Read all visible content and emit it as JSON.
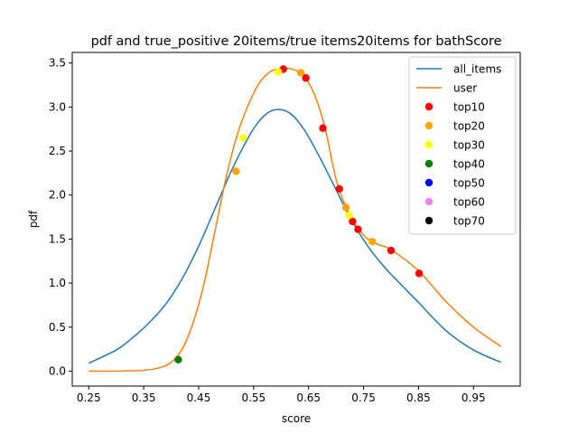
{
  "chart_data": {
    "type": "line",
    "title": "pdf and true_positive 20items/true items20items for bathScore",
    "xlabel": "score",
    "ylabel": "pdf",
    "xlim": [
      0.22,
      1.035
    ],
    "ylim": [
      -0.17,
      3.62
    ],
    "xticks": [
      "0.25",
      "0.35",
      "0.45",
      "0.55",
      "0.65",
      "0.75",
      "0.85",
      "0.95"
    ],
    "xtick_values": [
      0.25,
      0.35,
      0.45,
      0.55,
      0.65,
      0.75,
      0.85,
      0.95
    ],
    "yticks": [
      "0.0",
      "0.5",
      "1.0",
      "1.5",
      "2.0",
      "2.5",
      "3.0",
      "3.5"
    ],
    "ytick_values": [
      0.0,
      0.5,
      1.0,
      1.5,
      2.0,
      2.5,
      3.0,
      3.5
    ],
    "grid": false,
    "legend_position": "top-right",
    "series": [
      {
        "name": "all_items",
        "kind": "line",
        "color": "#1f77b4",
        "x": [
          0.25,
          0.3,
          0.33,
          0.36,
          0.39,
          0.42,
          0.45,
          0.48,
          0.51,
          0.54,
          0.56,
          0.58,
          0.6,
          0.62,
          0.64,
          0.66,
          0.68,
          0.7,
          0.72,
          0.74,
          0.76,
          0.78,
          0.8,
          0.85,
          0.9,
          0.95,
          1.0
        ],
        "y": [
          0.09,
          0.24,
          0.38,
          0.55,
          0.76,
          1.05,
          1.42,
          1.85,
          2.28,
          2.65,
          2.84,
          2.95,
          2.97,
          2.91,
          2.76,
          2.55,
          2.31,
          2.06,
          1.81,
          1.59,
          1.4,
          1.24,
          1.1,
          0.78,
          0.46,
          0.24,
          0.1
        ]
      },
      {
        "name": "user",
        "kind": "line",
        "color": "#ff7f0e",
        "x": [
          0.25,
          0.3,
          0.35,
          0.38,
          0.4,
          0.42,
          0.44,
          0.46,
          0.48,
          0.5,
          0.52,
          0.54,
          0.56,
          0.58,
          0.6,
          0.62,
          0.64,
          0.66,
          0.68,
          0.7,
          0.72,
          0.74,
          0.76,
          0.78,
          0.8,
          0.85,
          0.9,
          0.95,
          1.0
        ],
        "y": [
          0.0,
          0.0,
          0.01,
          0.04,
          0.1,
          0.25,
          0.55,
          1.0,
          1.6,
          2.2,
          2.68,
          3.02,
          3.27,
          3.4,
          3.44,
          3.43,
          3.36,
          3.15,
          2.76,
          2.18,
          1.84,
          1.62,
          1.49,
          1.43,
          1.38,
          1.14,
          0.79,
          0.5,
          0.28
        ]
      },
      {
        "name": "top10",
        "kind": "scatter",
        "color": "#ff0000",
        "x": [
          0.604,
          0.645,
          0.676,
          0.706,
          0.73,
          0.74,
          0.8,
          0.851
        ],
        "y": [
          3.43,
          3.33,
          2.76,
          2.07,
          1.7,
          1.61,
          1.37,
          1.11
        ]
      },
      {
        "name": "top20",
        "kind": "scatter",
        "color": "#ffa500",
        "x": [
          0.518,
          0.636,
          0.718,
          0.766
        ],
        "y": [
          2.27,
          3.39,
          1.86,
          1.47
        ]
      },
      {
        "name": "top30",
        "kind": "scatter",
        "color": "#ffff00",
        "x": [
          0.531,
          0.595,
          0.724
        ],
        "y": [
          2.65,
          3.4,
          1.77
        ]
      },
      {
        "name": "top40",
        "kind": "scatter",
        "color": "#008000",
        "x": [
          0.413
        ],
        "y": [
          0.13
        ]
      },
      {
        "name": "top50",
        "kind": "scatter",
        "color": "#0000ff",
        "x": [],
        "y": []
      },
      {
        "name": "top60",
        "kind": "scatter",
        "color": "#ee82ee",
        "x": [],
        "y": []
      },
      {
        "name": "top70",
        "kind": "scatter",
        "color": "#000000",
        "x": [],
        "y": []
      }
    ]
  }
}
